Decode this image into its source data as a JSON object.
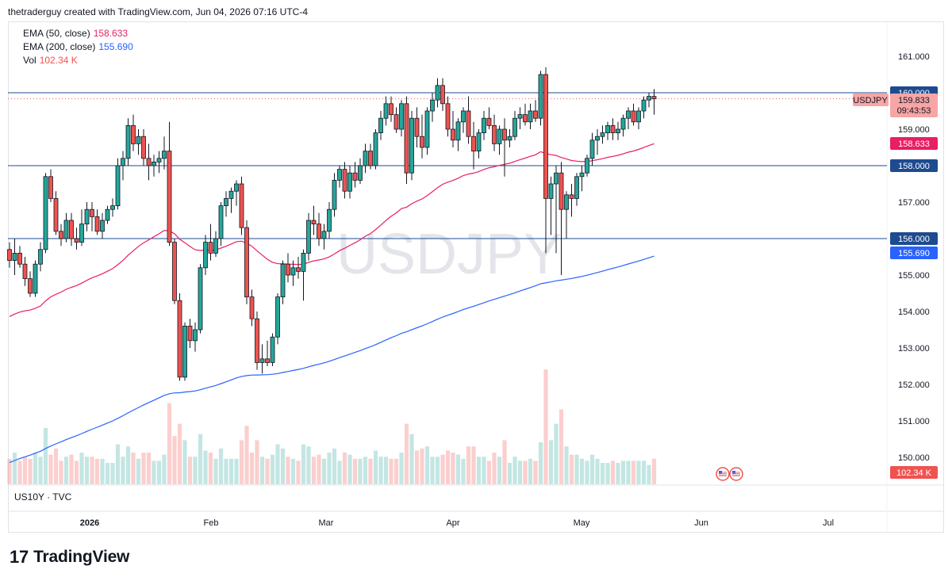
{
  "header": {
    "attribution": "thetraderguy created with TradingView.com, Jun 04, 2026 07:16 UTC-4"
  },
  "legend": {
    "ema50_label": "EMA (50, close)",
    "ema50_value": "158.633",
    "ema50_color": "#e91e63",
    "ema200_label": "EMA (200, close)",
    "ema200_value": "155.690",
    "ema200_color": "#2962ff",
    "vol_label": "Vol",
    "vol_value": "102.34 K"
  },
  "watermark": "USDJPY",
  "sub_legend": "US10Y · TVC",
  "footer": {
    "brand": "TradingView",
    "mark": "17"
  },
  "price_tags": {
    "symbol": "USDJPY",
    "last": "159.833",
    "countdown": "09:43:53",
    "h160": "160.000",
    "ema50": "158.633",
    "h158": "158.000",
    "h156": "156.000",
    "ema200": "155.690",
    "vol": "102.34 K"
  },
  "chart_data": {
    "type": "candlestick",
    "symbol": "USDJPY",
    "y_axis": {
      "ticks": [
        "161.000",
        "160.000",
        "159.000",
        "158.000",
        "157.000",
        "156.000",
        "155.000",
        "154.000",
        "153.000",
        "152.000",
        "151.000",
        "150.000"
      ],
      "range": [
        149.3,
        161.6
      ]
    },
    "x_axis": {
      "labels": [
        "2026",
        "Feb",
        "Mar",
        "Apr",
        "May",
        "Jun",
        "Jul"
      ]
    },
    "horizontal_lines": [
      160.0,
      158.0,
      156.0
    ],
    "up_color": "#26a69a",
    "down_color": "#ef5350",
    "candles_ohlc": [
      [
        155.7,
        155.9,
        155.2,
        155.4
      ],
      [
        155.4,
        156.0,
        155.0,
        155.6
      ],
      [
        155.6,
        155.8,
        155.2,
        155.3
      ],
      [
        155.3,
        155.5,
        154.7,
        154.9
      ],
      [
        154.9,
        155.1,
        154.4,
        154.5
      ],
      [
        154.5,
        155.4,
        154.4,
        155.3
      ],
      [
        155.3,
        155.9,
        155.1,
        155.7
      ],
      [
        155.7,
        157.8,
        155.6,
        157.7
      ],
      [
        157.7,
        157.9,
        157.0,
        157.1
      ],
      [
        157.1,
        157.3,
        156.1,
        156.2
      ],
      [
        156.2,
        156.4,
        155.8,
        156.0
      ],
      [
        156.0,
        156.7,
        155.9,
        156.5
      ],
      [
        156.5,
        156.7,
        155.8,
        156.0
      ],
      [
        156.0,
        156.3,
        155.7,
        155.9
      ],
      [
        155.9,
        156.8,
        155.8,
        156.4
      ],
      [
        156.4,
        157.0,
        156.2,
        156.8
      ],
      [
        156.8,
        157.0,
        156.2,
        156.6
      ],
      [
        156.6,
        156.8,
        156.1,
        156.2
      ],
      [
        156.2,
        156.7,
        156.0,
        156.5
      ],
      [
        156.5,
        156.9,
        156.4,
        156.8
      ],
      [
        156.8,
        157.1,
        156.6,
        156.9
      ],
      [
        156.9,
        158.2,
        156.8,
        158.0
      ],
      [
        158.0,
        158.4,
        157.6,
        158.2
      ],
      [
        158.2,
        159.3,
        158.0,
        159.1
      ],
      [
        159.1,
        159.4,
        158.4,
        158.6
      ],
      [
        158.6,
        159.0,
        158.3,
        158.8
      ],
      [
        158.8,
        159.0,
        158.0,
        158.2
      ],
      [
        158.2,
        158.6,
        157.6,
        158.0
      ],
      [
        158.0,
        158.3,
        157.7,
        158.1
      ],
      [
        158.1,
        158.4,
        157.8,
        158.2
      ],
      [
        158.2,
        158.8,
        157.9,
        158.4
      ],
      [
        158.4,
        159.2,
        155.8,
        155.9
      ],
      [
        155.9,
        156.0,
        154.2,
        154.3
      ],
      [
        154.3,
        154.5,
        152.1,
        152.2
      ],
      [
        152.2,
        153.7,
        152.1,
        153.6
      ],
      [
        153.6,
        153.8,
        153.0,
        153.2
      ],
      [
        153.2,
        153.7,
        152.9,
        153.5
      ],
      [
        153.5,
        155.3,
        153.4,
        155.2
      ],
      [
        155.2,
        156.1,
        155.0,
        155.9
      ],
      [
        155.9,
        156.4,
        155.4,
        155.6
      ],
      [
        155.6,
        156.2,
        155.5,
        156.0
      ],
      [
        156.0,
        157.0,
        155.8,
        156.9
      ],
      [
        156.9,
        157.3,
        156.6,
        157.1
      ],
      [
        157.1,
        157.4,
        156.7,
        157.3
      ],
      [
        157.3,
        157.6,
        156.9,
        157.5
      ],
      [
        157.5,
        157.7,
        156.1,
        156.3
      ],
      [
        156.3,
        156.5,
        154.2,
        154.4
      ],
      [
        154.4,
        154.6,
        153.6,
        153.8
      ],
      [
        153.8,
        154.0,
        152.4,
        152.6
      ],
      [
        152.6,
        153.1,
        152.3,
        152.7
      ],
      [
        152.7,
        153.2,
        152.5,
        152.6
      ],
      [
        152.6,
        153.4,
        152.5,
        153.3
      ],
      [
        153.3,
        154.5,
        153.1,
        154.4
      ],
      [
        154.4,
        155.4,
        154.2,
        155.3
      ],
      [
        155.3,
        155.6,
        154.8,
        155.0
      ],
      [
        155.0,
        155.4,
        154.7,
        155.2
      ],
      [
        155.2,
        155.5,
        154.9,
        155.1
      ],
      [
        155.1,
        155.7,
        154.3,
        155.6
      ],
      [
        155.6,
        156.7,
        155.4,
        156.5
      ],
      [
        156.5,
        156.9,
        156.1,
        156.4
      ],
      [
        156.4,
        156.7,
        155.8,
        156.0
      ],
      [
        156.0,
        156.4,
        155.7,
        156.2
      ],
      [
        156.2,
        157.0,
        156.0,
        156.8
      ],
      [
        156.8,
        157.8,
        156.6,
        157.6
      ],
      [
        157.6,
        158.0,
        157.4,
        157.9
      ],
      [
        157.9,
        158.1,
        157.1,
        157.3
      ],
      [
        157.3,
        158.0,
        157.1,
        157.8
      ],
      [
        157.8,
        158.1,
        157.4,
        157.6
      ],
      [
        157.6,
        158.2,
        157.5,
        158.0
      ],
      [
        158.0,
        158.6,
        157.8,
        158.4
      ],
      [
        158.4,
        158.6,
        157.9,
        158.0
      ],
      [
        158.0,
        159.0,
        157.9,
        158.9
      ],
      [
        158.9,
        159.5,
        158.7,
        159.3
      ],
      [
        159.3,
        159.9,
        159.1,
        159.7
      ],
      [
        159.7,
        159.9,
        159.2,
        159.4
      ],
      [
        159.4,
        159.6,
        158.9,
        159.0
      ],
      [
        159.0,
        159.8,
        158.8,
        159.7
      ],
      [
        159.7,
        159.9,
        157.5,
        157.8
      ],
      [
        157.8,
        159.5,
        157.6,
        159.3
      ],
      [
        159.3,
        159.6,
        158.5,
        158.8
      ],
      [
        158.8,
        159.4,
        158.2,
        158.5
      ],
      [
        158.5,
        159.6,
        158.3,
        159.5
      ],
      [
        159.5,
        160.0,
        159.2,
        159.8
      ],
      [
        159.8,
        160.4,
        159.6,
        160.2
      ],
      [
        160.2,
        160.4,
        159.5,
        159.7
      ],
      [
        159.7,
        159.9,
        158.8,
        159.0
      ],
      [
        159.0,
        159.5,
        158.5,
        158.7
      ],
      [
        158.7,
        159.3,
        158.4,
        159.2
      ],
      [
        159.2,
        159.6,
        158.9,
        159.5
      ],
      [
        159.5,
        159.9,
        158.6,
        158.8
      ],
      [
        158.8,
        159.2,
        157.9,
        158.4
      ],
      [
        158.4,
        159.0,
        158.2,
        158.9
      ],
      [
        158.9,
        159.5,
        158.7,
        159.3
      ],
      [
        159.3,
        159.6,
        159.0,
        159.1
      ],
      [
        159.1,
        159.4,
        158.4,
        158.6
      ],
      [
        158.6,
        159.1,
        158.3,
        159.0
      ],
      [
        159.0,
        159.3,
        157.7,
        158.7
      ],
      [
        158.7,
        159.0,
        158.5,
        158.8
      ],
      [
        158.8,
        159.5,
        158.7,
        159.3
      ],
      [
        159.3,
        159.6,
        159.0,
        159.4
      ],
      [
        159.4,
        159.7,
        159.1,
        159.2
      ],
      [
        159.2,
        159.7,
        159.0,
        159.5
      ],
      [
        159.5,
        159.8,
        159.2,
        159.3
      ],
      [
        159.3,
        160.6,
        159.1,
        160.5
      ],
      [
        160.5,
        160.7,
        155.6,
        157.1
      ],
      [
        157.1,
        157.7,
        156.1,
        157.5
      ],
      [
        157.5,
        158.0,
        155.6,
        157.8
      ],
      [
        157.8,
        158.1,
        155.0,
        156.8
      ],
      [
        156.8,
        157.3,
        156.0,
        157.2
      ],
      [
        157.2,
        157.5,
        156.6,
        157.1
      ],
      [
        157.1,
        157.8,
        156.9,
        157.7
      ],
      [
        157.7,
        158.0,
        157.3,
        157.8
      ],
      [
        157.8,
        158.3,
        157.7,
        158.2
      ],
      [
        158.2,
        158.9,
        158.0,
        158.7
      ],
      [
        158.7,
        159.0,
        158.3,
        158.8
      ],
      [
        158.8,
        159.1,
        158.6,
        158.9
      ],
      [
        158.9,
        159.2,
        158.7,
        159.1
      ],
      [
        159.1,
        159.3,
        158.7,
        158.9
      ],
      [
        158.9,
        159.2,
        158.7,
        159.0
      ],
      [
        159.0,
        159.4,
        158.8,
        159.3
      ],
      [
        159.3,
        159.6,
        159.0,
        159.5
      ],
      [
        159.5,
        159.7,
        159.1,
        159.2
      ],
      [
        159.2,
        159.6,
        159.0,
        159.5
      ],
      [
        159.5,
        159.9,
        159.3,
        159.8
      ],
      [
        159.8,
        160.0,
        159.6,
        159.9
      ],
      [
        159.9,
        160.1,
        159.4,
        159.833
      ]
    ],
    "ema50_last": 158.633,
    "ema200_last": 155.69,
    "volume_last": "102.34 K"
  }
}
